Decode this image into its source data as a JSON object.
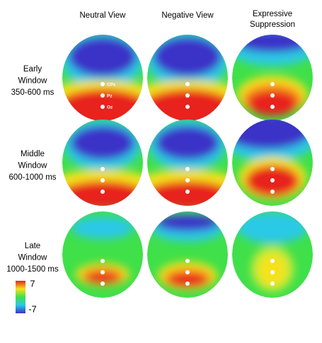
{
  "columns": [
    "Neutral View",
    "Negative View",
    [
      "Expressive",
      "Suppression"
    ]
  ],
  "rows": [
    [
      "Early",
      "Window",
      "350-600 ms"
    ],
    [
      "Middle",
      "Window",
      "600-1000 ms"
    ],
    [
      "Late",
      "Window",
      "1000-1500 ms"
    ]
  ],
  "electrodes": [
    "CPz",
    "Pz",
    "Oz"
  ],
  "colorbar": {
    "max": "7",
    "min": "-7"
  }
}
